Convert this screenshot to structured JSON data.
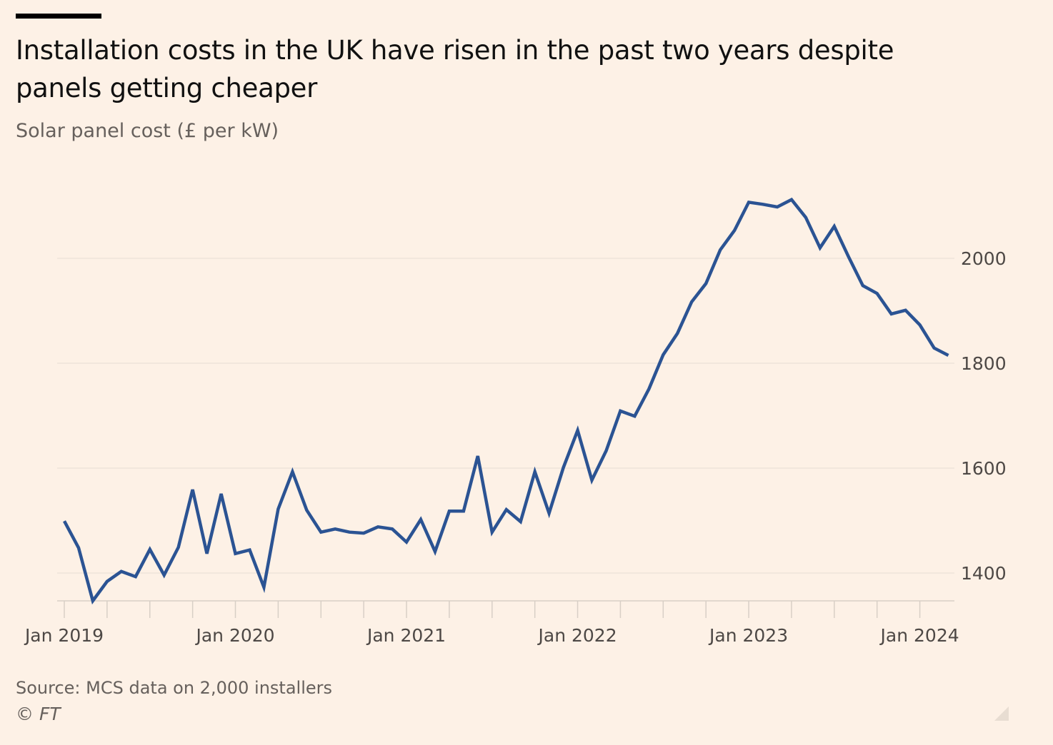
{
  "header": {
    "title": "Installation costs in the UK have risen in the past two years despite panels getting cheaper",
    "subtitle": "Solar panel cost (£ per kW)"
  },
  "footer": {
    "source": "Source: MCS data on 2,000 installers",
    "copyright": "© FT"
  },
  "colors": {
    "line": "#2b5393",
    "background": "#fdf1e6",
    "grid": "#e6ddd4"
  },
  "chart_data": {
    "type": "line",
    "title": "Installation costs in the UK have risen in the past two years despite panels getting cheaper",
    "ylabel": "Solar panel cost (£ per kW)",
    "ylim": [
      1347,
      2130
    ],
    "y_ticks": [
      1400,
      1600,
      1800,
      2000
    ],
    "y_tick_labels": [
      "1400",
      "1600",
      "1800",
      "2000"
    ],
    "y_axis_position": "right",
    "x_tick_labels": [
      "Jan 2019",
      "Jan 2020",
      "Jan 2021",
      "Jan 2022",
      "Jan 2023",
      "Jan 2024"
    ],
    "x_tick_dates": [
      "2019-01",
      "2020-01",
      "2021-01",
      "2022-01",
      "2023-01",
      "2024-01"
    ],
    "grid": true,
    "series": [
      {
        "x": [
          "2019-01",
          "2019-02",
          "2019-03",
          "2019-04",
          "2019-05",
          "2019-06",
          "2019-07",
          "2019-08",
          "2019-09",
          "2019-10",
          "2019-11",
          "2019-12",
          "2020-01",
          "2020-02",
          "2020-03",
          "2020-04",
          "2020-05",
          "2020-06",
          "2020-07",
          "2020-08",
          "2020-09",
          "2020-10",
          "2020-11",
          "2020-12",
          "2021-01",
          "2021-02",
          "2021-03",
          "2021-04",
          "2021-05",
          "2021-06",
          "2021-07",
          "2021-08",
          "2021-09",
          "2021-10",
          "2021-11",
          "2021-12",
          "2022-01",
          "2022-02",
          "2022-03",
          "2022-04",
          "2022-05",
          "2022-06",
          "2022-07",
          "2022-08",
          "2022-09",
          "2022-10",
          "2022-11",
          "2022-12",
          "2023-01",
          "2023-02",
          "2023-03",
          "2023-04",
          "2023-05",
          "2023-06",
          "2023-07",
          "2023-08",
          "2023-09",
          "2023-10",
          "2023-11",
          "2023-12",
          "2024-01",
          "2024-02",
          "2024-03"
        ],
        "values": [
          1499,
          1448,
          1347,
          1384,
          1403,
          1393,
          1445,
          1396,
          1449,
          1559,
          1437,
          1551,
          1437,
          1444,
          1373,
          1522,
          1593,
          1520,
          1478,
          1484,
          1478,
          1476,
          1488,
          1484,
          1459,
          1502,
          1441,
          1518,
          1518,
          1623,
          1478,
          1521,
          1498,
          1593,
          1514,
          1601,
          1672,
          1577,
          1633,
          1709,
          1699,
          1751,
          1816,
          1857,
          1917,
          1952,
          2016,
          2053,
          2107,
          2103,
          2098,
          2112,
          2078,
          2020,
          2061,
          2003,
          1948,
          1933,
          1894,
          1901,
          1873,
          1829,
          1815
        ]
      }
    ]
  }
}
